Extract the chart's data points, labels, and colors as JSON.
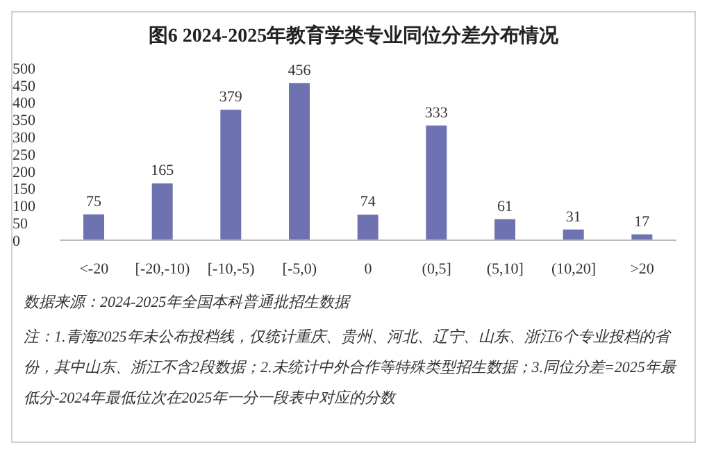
{
  "chart_data": {
    "type": "bar",
    "title": "图6 2024-2025年教育学类专业同位分差分布情况",
    "categories": [
      "<-20",
      "[-20,-10)",
      "[-10,-5)",
      "[-5,0)",
      "0",
      "(0,5]",
      "(5,10]",
      "(10,20]",
      ">20"
    ],
    "values": [
      75,
      165,
      379,
      456,
      74,
      333,
      61,
      31,
      17
    ],
    "color": "#6e72b0",
    "ylim": [
      0,
      500
    ],
    "yticks": [
      0,
      50,
      100,
      150,
      200,
      250,
      300,
      350,
      400,
      450,
      500
    ],
    "grid": false,
    "data_labels": true,
    "annotations": [
      "数据来源：2024-2025年全国本科普通批招生数据",
      "注：1.青海2025年未公布投档线，仅统计重庆、贵州、河北、辽宁、山东、浙江6个专业投档的省份，其中山东、浙江不含2段数据；2.未统计中外合作等特殊类型招生数据；3.同位分差=2025年最低分-2024年最低位次在2025年一分一段表中对应的分数"
    ]
  }
}
